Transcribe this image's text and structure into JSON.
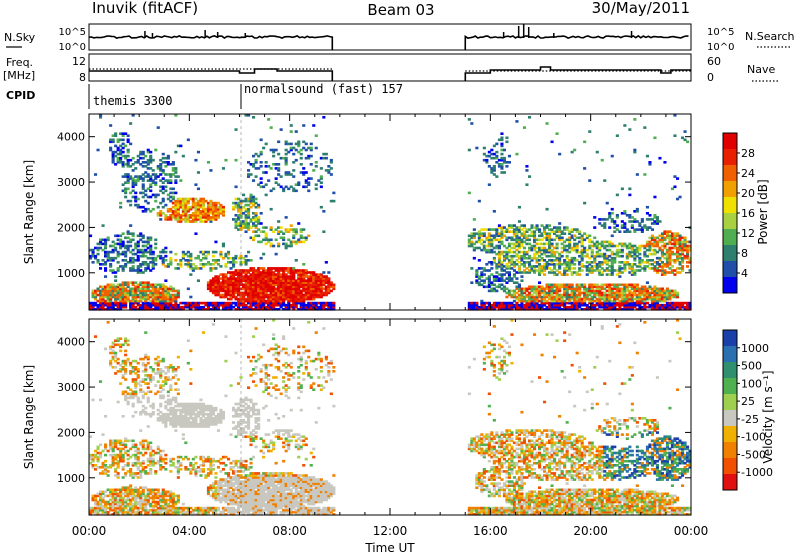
{
  "header": {
    "station": "Inuvik (fitACF)",
    "beam": "Beam 03",
    "date": "30/May/2011"
  },
  "status_panels": {
    "nsky_label": "N.Sky",
    "nsearch_label": "N.Search",
    "freq_label_1": "Freq.",
    "freq_label_2": "[MHz]",
    "nave_label": "Nave",
    "cpid_label": "CPID",
    "noise_ticks": [
      "10^5",
      "10^0"
    ],
    "freq_ticks": [
      "12",
      "8"
    ],
    "nave_ticks": [
      "60",
      "0"
    ],
    "cpid_modes": [
      "themis 3300",
      "normalsound (fast) 157"
    ]
  },
  "colors": {
    "power_scale": [
      "#0000ee",
      "#1f4fa8",
      "#2f7f6f",
      "#4fae4f",
      "#a8d040",
      "#f0e000",
      "#f0a000",
      "#f06000",
      "#e82000",
      "#e00000"
    ],
    "velocity_scale": [
      "#1a3fa8",
      "#2a6fb0",
      "#2f8f6f",
      "#4fb04f",
      "#9fcf4f",
      "#c8c8c0",
      "#f0b000",
      "#f08000",
      "#f05000",
      "#e01010"
    ]
  },
  "chart_data": [
    {
      "type": "heatmap",
      "title": "",
      "xlabel": "Time UT",
      "ylabel": "Slant Range [km]",
      "x_ticks": [
        "00:00",
        "04:00",
        "08:00",
        "12:00",
        "16:00",
        "20:00",
        "00:00"
      ],
      "y_ticks": [
        "1000",
        "2000",
        "3000",
        "4000"
      ],
      "ylim": [
        180,
        4500
      ],
      "colorbar": {
        "label": "Power [dB]",
        "ticks": [
          "4",
          "8",
          "12",
          "16",
          "20",
          "24",
          "28"
        ],
        "range": [
          0,
          30
        ]
      },
      "data_gaps": [
        [
          9.7,
          15.0
        ]
      ]
    },
    {
      "type": "heatmap",
      "title": "",
      "xlabel": "Time UT",
      "ylabel": "Slant Range [km]",
      "x_ticks": [
        "00:00",
        "04:00",
        "08:00",
        "12:00",
        "16:00",
        "20:00",
        "00:00"
      ],
      "y_ticks": [
        "1000",
        "2000",
        "3000",
        "4000"
      ],
      "ylim": [
        180,
        4500
      ],
      "colorbar": {
        "label": "Velocity [m s⁻¹]",
        "ticks": [
          "1000",
          "500",
          "100",
          "25",
          "-25",
          "-100",
          "-500",
          "-1000"
        ]
      },
      "data_gaps": [
        [
          9.7,
          15.0
        ]
      ]
    }
  ],
  "axis": {
    "time_label": "Time UT"
  }
}
